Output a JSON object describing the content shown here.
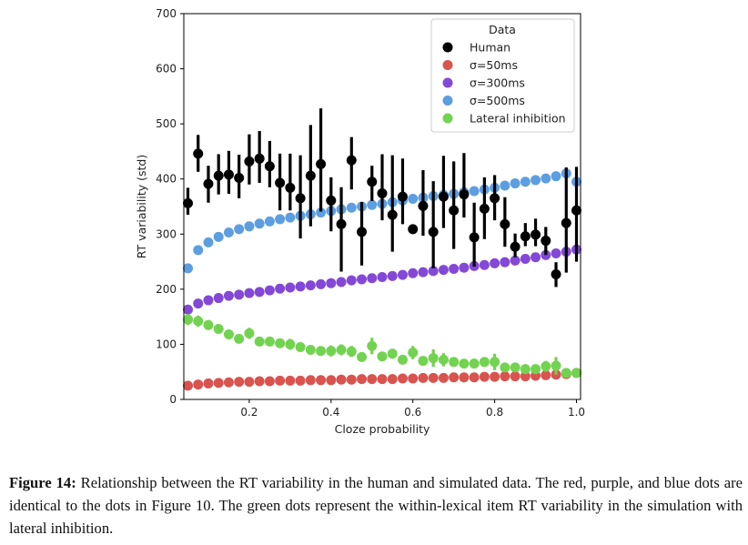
{
  "caption": {
    "label": "Figure 14:",
    "text": "Relationship between the RT variability in the human and simulated data. The red, purple, and blue dots are identical to the dots in Figure 10. The green dots represent the within-lexical item RT variability in the simulation with lateral inhibition."
  },
  "chart_data": {
    "type": "scatter",
    "title": "",
    "xlabel": "Cloze probability",
    "ylabel": "RT variability (std)",
    "xlim": [
      0.04,
      1.01
    ],
    "ylim": [
      0,
      700
    ],
    "xticks": [
      "0.2",
      "0.4",
      "0.6",
      "0.8",
      "1.0"
    ],
    "yticks": [
      "0",
      "100",
      "200",
      "300",
      "400",
      "500",
      "600",
      "700"
    ],
    "legend": {
      "title": "Data",
      "position": "top-right"
    },
    "x": [
      0.05,
      0.075,
      0.1,
      0.125,
      0.15,
      0.175,
      0.2,
      0.225,
      0.25,
      0.275,
      0.3,
      0.325,
      0.35,
      0.375,
      0.4,
      0.425,
      0.45,
      0.475,
      0.5,
      0.525,
      0.55,
      0.575,
      0.6,
      0.625,
      0.65,
      0.675,
      0.7,
      0.725,
      0.75,
      0.775,
      0.8,
      0.825,
      0.85,
      0.875,
      0.9,
      0.925,
      0.95,
      0.975,
      1.0
    ],
    "series": [
      {
        "name": "Human",
        "color": "#000000",
        "values": [
          356,
          446,
          391,
          406,
          408,
          402,
          432,
          437,
          423,
          393,
          384,
          365,
          406,
          427,
          361,
          318,
          434,
          304,
          395,
          374,
          335,
          368,
          309,
          351,
          304,
          368,
          343,
          372,
          294,
          346,
          365,
          318,
          277,
          296,
          299,
          288,
          227,
          320,
          343
        ],
        "err_low": [
          335,
          413,
          357,
          372,
          373,
          365,
          390,
          393,
          385,
          343,
          343,
          292,
          314,
          341,
          305,
          232,
          381,
          243,
          360,
          325,
          268,
          318,
          301,
          297,
          238,
          311,
          273,
          330,
          241,
          291,
          325,
          277,
          258,
          278,
          278,
          262,
          204,
          230,
          250
        ],
        "err_high": [
          384,
          480,
          424,
          445,
          451,
          444,
          481,
          487,
          469,
          446,
          446,
          443,
          498,
          528,
          403,
          385,
          476,
          358,
          424,
          445,
          443,
          437,
          313,
          416,
          396,
          442,
          432,
          447,
          357,
          403,
          407,
          367,
          301,
          320,
          328,
          313,
          249,
          421,
          422
        ]
      },
      {
        "name": "σ=50ms",
        "color": "#d9534f",
        "values": [
          25,
          27,
          29,
          30,
          31,
          32,
          32,
          33,
          33,
          34,
          34,
          34,
          35,
          35,
          35,
          36,
          36,
          37,
          37,
          37,
          37,
          38,
          38,
          39,
          39,
          39,
          40,
          40,
          40,
          41,
          41,
          42,
          42,
          42,
          43,
          44,
          45,
          46,
          48
        ]
      },
      {
        "name": "σ=300ms",
        "color": "#8448d6",
        "values": [
          163,
          174,
          180,
          184,
          188,
          190,
          193,
          195,
          198,
          201,
          203,
          205,
          207,
          209,
          211,
          213,
          216,
          218,
          220,
          222,
          224,
          226,
          229,
          231,
          233,
          235,
          237,
          239,
          242,
          244,
          247,
          249,
          252,
          255,
          258,
          262,
          265,
          268,
          272
        ]
      },
      {
        "name": "σ=500ms",
        "color": "#5d9ee0",
        "values": [
          238,
          271,
          285,
          295,
          303,
          309,
          314,
          319,
          323,
          327,
          330,
          333,
          336,
          339,
          342,
          345,
          348,
          350,
          353,
          355,
          358,
          361,
          364,
          366,
          369,
          371,
          373,
          376,
          378,
          381,
          384,
          388,
          392,
          395,
          398,
          401,
          405,
          410,
          395
        ]
      },
      {
        "name": "Lateral inhibition",
        "color": "#72d350",
        "values": [
          145,
          142,
          135,
          128,
          118,
          110,
          120,
          105,
          105,
          102,
          100,
          95,
          90,
          88,
          88,
          90,
          87,
          77,
          97,
          78,
          83,
          72,
          85,
          70,
          75,
          72,
          68,
          65,
          65,
          68,
          68,
          58,
          58,
          55,
          55,
          60,
          61,
          48,
          48
        ],
        "err": [
          10,
          10,
          9,
          8,
          8,
          8,
          10,
          7,
          8,
          7,
          10,
          7,
          7,
          7,
          10,
          10,
          10,
          8,
          15,
          8,
          9,
          7,
          12,
          7,
          16,
          12,
          7,
          7,
          9,
          8,
          15,
          7,
          8,
          7,
          7,
          10,
          16,
          7,
          7
        ]
      }
    ]
  }
}
